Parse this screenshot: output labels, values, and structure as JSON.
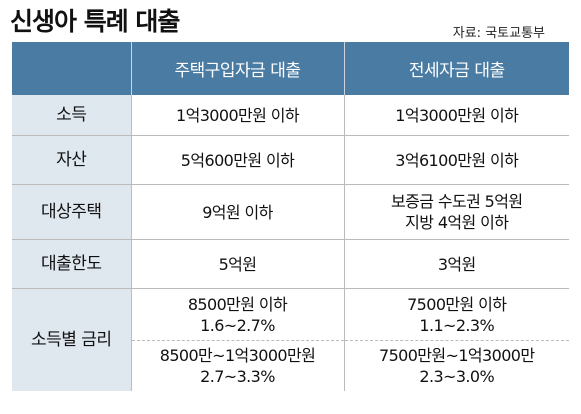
{
  "header": {
    "title": "신생아 특례 대출",
    "source": "자료: 국토교통부"
  },
  "table": {
    "columns": [
      "",
      "주택구입자금 대출",
      "전세자금 대출"
    ],
    "rows": [
      {
        "label": "소득",
        "purchase": [
          "1억3000만원 이하"
        ],
        "jeonse": [
          "1억3000만원 이하"
        ]
      },
      {
        "label": "자산",
        "purchase": [
          "5억600만원 이하"
        ],
        "jeonse": [
          "3억6100만원 이하"
        ]
      },
      {
        "label": "대상주택",
        "purchase": [
          "9억원 이하"
        ],
        "jeonse": [
          "보증금 수도권 5억원",
          "지방 4억원 이하"
        ]
      },
      {
        "label": "대출한도",
        "purchase": [
          "5억원"
        ],
        "jeonse": [
          "3억원"
        ]
      }
    ],
    "rate_row": {
      "label": "소득별 금리",
      "tiers": [
        {
          "purchase": [
            "8500만원 이하",
            "1.6~2.7%"
          ],
          "jeonse": [
            "7500만원 이하",
            "1.1~2.3%"
          ]
        },
        {
          "purchase": [
            "8500만~1억3000만원",
            "2.7~3.3%"
          ],
          "jeonse": [
            "7500만원~1억3000만",
            "2.3~3.0%"
          ]
        }
      ]
    }
  }
}
